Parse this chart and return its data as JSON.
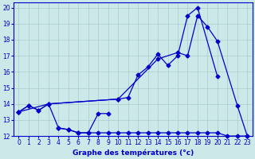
{
  "xlabel": "Graphe des températures (°c)",
  "bg_color": "#cce8e8",
  "line_color": "#0000cc",
  "grid_color": "#aacccc",
  "xlim": [
    -0.5,
    23.5
  ],
  "ylim": [
    12,
    20.3
  ],
  "xticks": [
    0,
    1,
    2,
    3,
    4,
    5,
    6,
    7,
    8,
    9,
    10,
    11,
    12,
    13,
    14,
    15,
    16,
    17,
    18,
    19,
    20,
    21,
    22,
    23
  ],
  "yticks": [
    12,
    13,
    14,
    15,
    16,
    17,
    18,
    19,
    20
  ],
  "s1_x": [
    0,
    1,
    2,
    3,
    10,
    11,
    12,
    13,
    14,
    15,
    16,
    17,
    18,
    20
  ],
  "s1_y": [
    13.5,
    13.9,
    13.6,
    14.0,
    14.3,
    14.4,
    15.8,
    16.3,
    17.1,
    16.4,
    17.0,
    19.5,
    20.0,
    15.7
  ],
  "s2_x": [
    0,
    1,
    2,
    3,
    4,
    5,
    6,
    7,
    8,
    9,
    10,
    11,
    12,
    13,
    14,
    15,
    16,
    17,
    18,
    19,
    20,
    21,
    22,
    23
  ],
  "s2_y": [
    13.5,
    13.9,
    13.6,
    14.0,
    12.5,
    12.4,
    12.2,
    12.2,
    12.2,
    12.2,
    12.2,
    12.2,
    12.2,
    12.2,
    12.2,
    12.2,
    12.2,
    12.2,
    12.2,
    12.2,
    12.2,
    12.0,
    12.0,
    12.0
  ],
  "s3_x": [
    0,
    3,
    10,
    14,
    16,
    17,
    18,
    19,
    20,
    22,
    23
  ],
  "s3_y": [
    13.5,
    14.0,
    14.3,
    16.8,
    17.2,
    17.0,
    19.5,
    18.8,
    17.9,
    13.9,
    12.0
  ],
  "s4_x": [
    4,
    5,
    6,
    7,
    8,
    9
  ],
  "s4_y": [
    12.5,
    12.4,
    12.2,
    12.2,
    13.4,
    13.4
  ]
}
